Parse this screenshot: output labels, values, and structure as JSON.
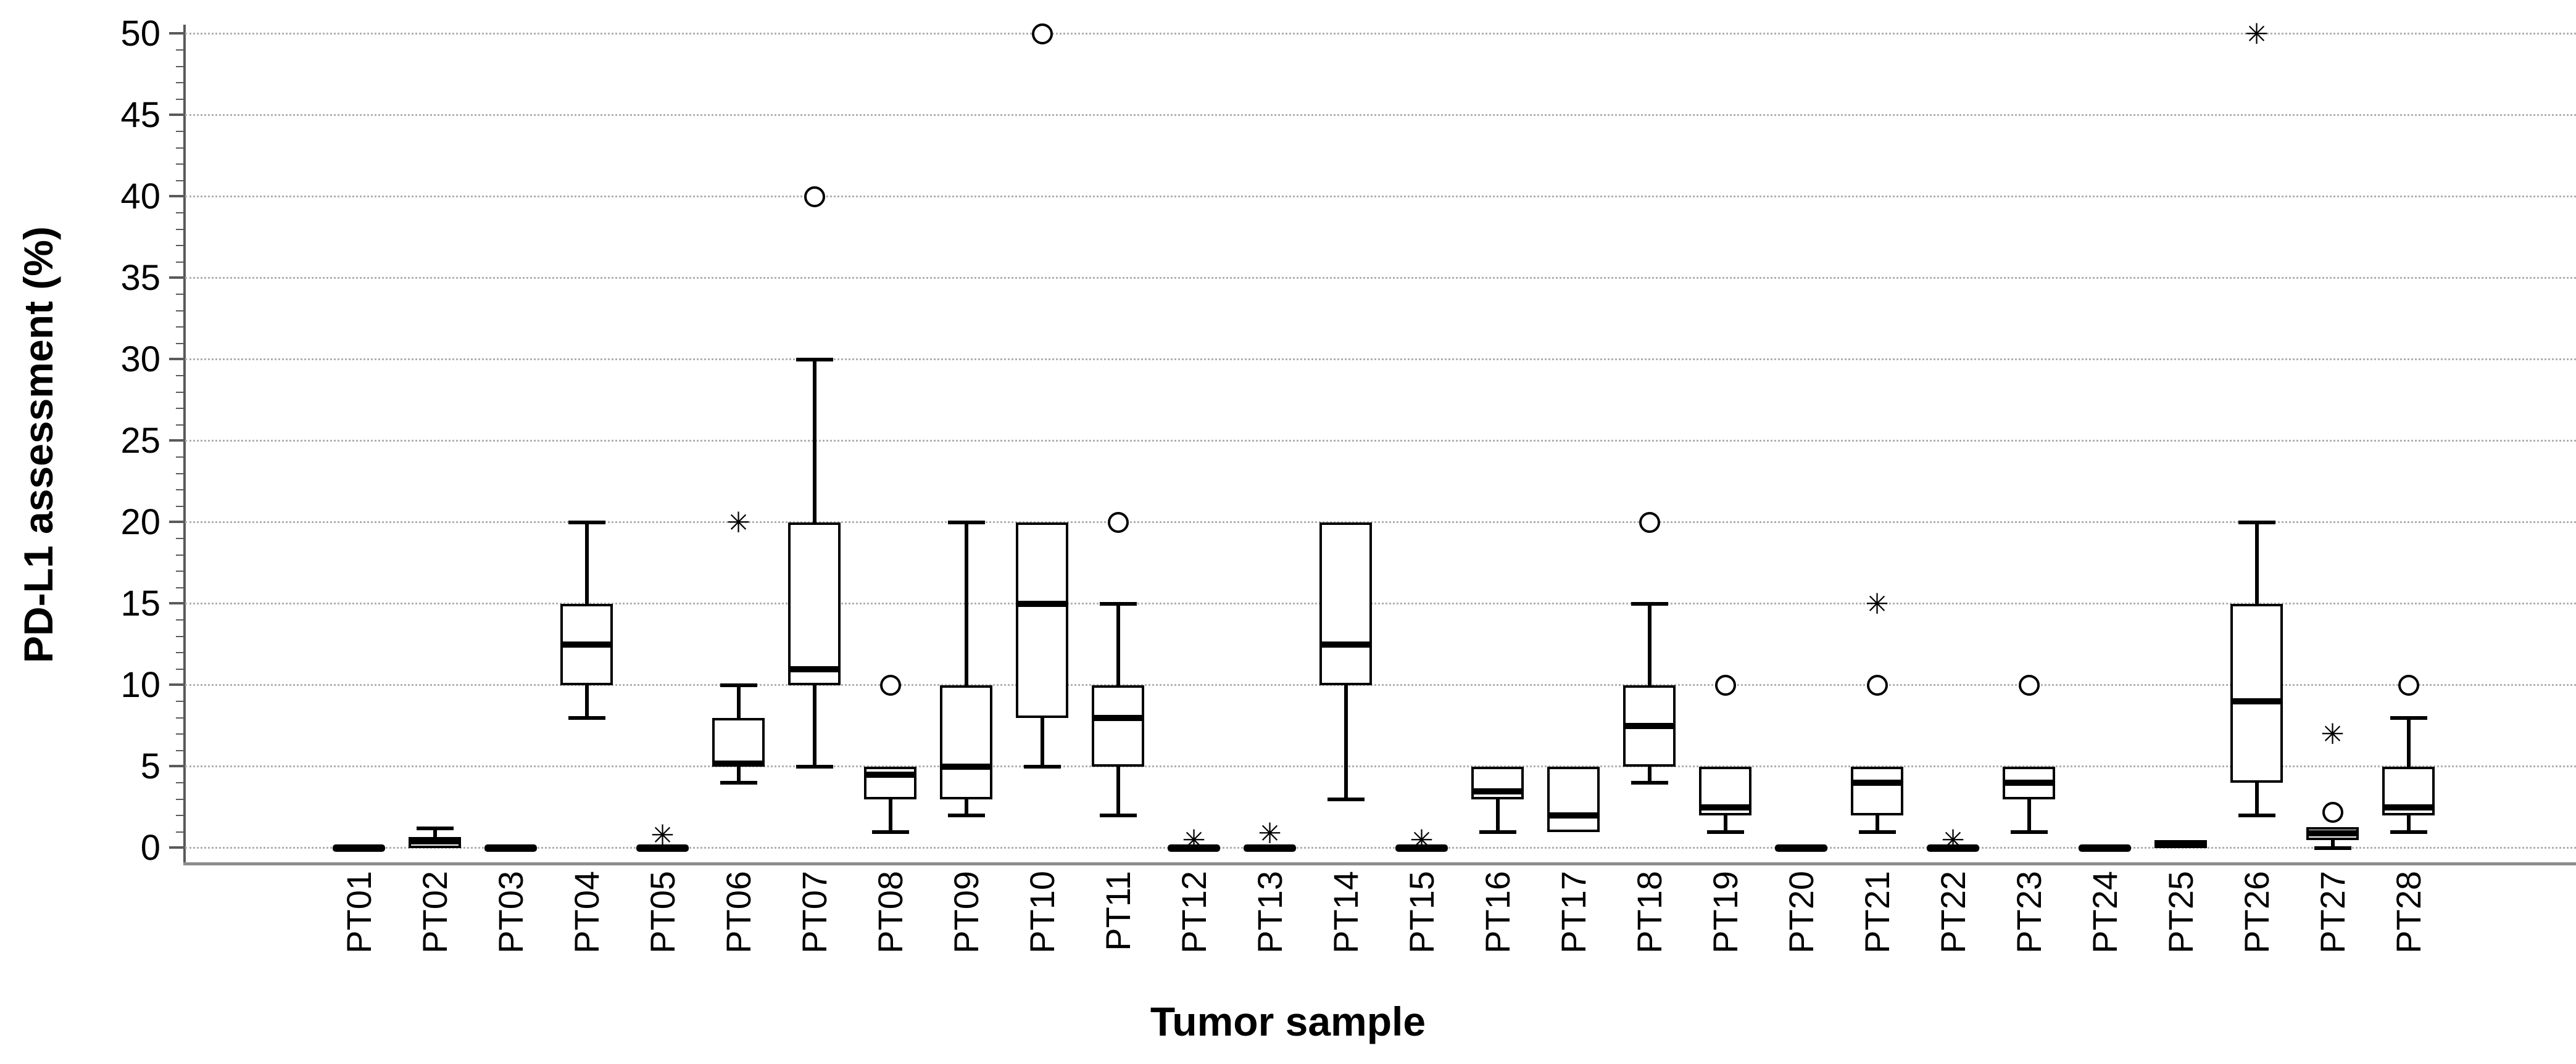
{
  "chart_data": {
    "type": "boxplot",
    "title": "",
    "xlabel": "Tumor sample",
    "ylabel": "PD-L1 assessment (%)",
    "ylim": [
      0,
      50
    ],
    "yticks": [
      0,
      5,
      10,
      15,
      20,
      25,
      30,
      35,
      40,
      45,
      50
    ],
    "grid": true,
    "legend": false,
    "categories": [
      "PT01",
      "PT02",
      "PT03",
      "PT04",
      "PT05",
      "PT06",
      "PT07",
      "PT08",
      "PT09",
      "PT10",
      "PT11",
      "PT12",
      "PT13",
      "PT14",
      "PT15",
      "PT16",
      "PT17",
      "PT18",
      "PT19",
      "PT20",
      "PT21",
      "PT22",
      "PT23",
      "PT24",
      "PT25",
      "PT26",
      "PT27",
      "PT28"
    ],
    "boxes": [
      {
        "label": "PT01",
        "low": 0,
        "q1": 0,
        "median": 0,
        "q3": 0,
        "high": 0,
        "circle": [],
        "star": []
      },
      {
        "label": "PT02",
        "low": 0,
        "q1": 0,
        "median": 0.4,
        "q3": 0.7,
        "high": 1.2,
        "circle": [],
        "star": []
      },
      {
        "label": "PT03",
        "low": 0,
        "q1": 0,
        "median": 0,
        "q3": 0,
        "high": 0,
        "circle": [],
        "star": []
      },
      {
        "label": "PT04",
        "low": 8,
        "q1": 10,
        "median": 12.5,
        "q3": 15,
        "high": 20,
        "circle": [],
        "star": []
      },
      {
        "label": "PT05",
        "low": 0,
        "q1": 0,
        "median": 0,
        "q3": 0,
        "high": 0,
        "circle": [],
        "star": [
          0.8
        ]
      },
      {
        "label": "PT06",
        "low": 4,
        "q1": 5,
        "median": 5.2,
        "q3": 8,
        "high": 10,
        "circle": [],
        "star": [
          20
        ]
      },
      {
        "label": "PT07",
        "low": 5,
        "q1": 10,
        "median": 11,
        "q3": 20,
        "high": 30,
        "circle": [
          40
        ],
        "star": []
      },
      {
        "label": "PT08",
        "low": 1,
        "q1": 3,
        "median": 4.5,
        "q3": 5,
        "high": 5,
        "circle": [
          10
        ],
        "star": []
      },
      {
        "label": "PT09",
        "low": 2,
        "q1": 3,
        "median": 5,
        "q3": 10,
        "high": 20,
        "circle": [],
        "star": []
      },
      {
        "label": "PT10",
        "low": 5,
        "q1": 8,
        "median": 15,
        "q3": 20,
        "high": 20,
        "circle": [
          50
        ],
        "star": []
      },
      {
        "label": "PT11",
        "low": 2,
        "q1": 5,
        "median": 8,
        "q3": 10,
        "high": 15,
        "circle": [
          20
        ],
        "star": []
      },
      {
        "label": "PT12",
        "low": 0,
        "q1": 0,
        "median": 0,
        "q3": 0,
        "high": 0,
        "circle": [],
        "star": [
          0.5
        ]
      },
      {
        "label": "PT13",
        "low": 0,
        "q1": 0,
        "median": 0,
        "q3": 0,
        "high": 0,
        "circle": [],
        "star": [
          0.9
        ]
      },
      {
        "label": "PT14",
        "low": 3,
        "q1": 10,
        "median": 12.5,
        "q3": 20,
        "high": 20,
        "circle": [],
        "star": []
      },
      {
        "label": "PT15",
        "low": 0,
        "q1": 0,
        "median": 0,
        "q3": 0,
        "high": 0,
        "circle": [],
        "star": [
          0.5
        ]
      },
      {
        "label": "PT16",
        "low": 1,
        "q1": 3,
        "median": 3.5,
        "q3": 5,
        "high": 5,
        "circle": [],
        "star": []
      },
      {
        "label": "PT17",
        "low": 1,
        "q1": 1,
        "median": 2,
        "q3": 5,
        "high": 5,
        "circle": [],
        "star": []
      },
      {
        "label": "PT18",
        "low": 4,
        "q1": 5,
        "median": 7.5,
        "q3": 10,
        "high": 15,
        "circle": [
          20
        ],
        "star": []
      },
      {
        "label": "PT19",
        "low": 1,
        "q1": 2,
        "median": 2.5,
        "q3": 5,
        "high": 5,
        "circle": [
          10
        ],
        "star": []
      },
      {
        "label": "PT20",
        "low": 0,
        "q1": 0,
        "median": 0,
        "q3": 0,
        "high": 0,
        "circle": [],
        "star": []
      },
      {
        "label": "PT21",
        "low": 1,
        "q1": 2,
        "median": 4,
        "q3": 5,
        "high": 5,
        "circle": [
          10
        ],
        "star": [
          15
        ]
      },
      {
        "label": "PT22",
        "low": 0,
        "q1": 0,
        "median": 0,
        "q3": 0,
        "high": 0,
        "circle": [],
        "star": [
          0.5
        ]
      },
      {
        "label": "PT23",
        "low": 1,
        "q1": 3,
        "median": 4,
        "q3": 5,
        "high": 5,
        "circle": [
          10
        ],
        "star": []
      },
      {
        "label": "PT24",
        "low": 0,
        "q1": 0,
        "median": 0,
        "q3": 0,
        "high": 0,
        "circle": [],
        "star": []
      },
      {
        "label": "PT25",
        "low": 0,
        "q1": 0,
        "median": 0.2,
        "q3": 0.5,
        "high": 0.5,
        "circle": [],
        "star": []
      },
      {
        "label": "PT26",
        "low": 2,
        "q1": 4,
        "median": 9,
        "q3": 15,
        "high": 20,
        "circle": [],
        "star": [
          50
        ]
      },
      {
        "label": "PT27",
        "low": 0,
        "q1": 0.5,
        "median": 0.9,
        "q3": 1.3,
        "high": 1.3,
        "circle": [
          2.2
        ],
        "star": [
          7
        ]
      },
      {
        "label": "PT28",
        "low": 1,
        "q1": 2,
        "median": 2.5,
        "q3": 5,
        "high": 8,
        "circle": [
          10
        ],
        "star": []
      }
    ],
    "markers": {
      "star_glyph": "✳",
      "circle_glyph": "○"
    },
    "style": {
      "box_stroke": "#000000",
      "box_fill": "#ffffff",
      "gridline_color": "#b0b0b0",
      "axis_color": "#5a5a5a",
      "text_color": "#000000"
    }
  }
}
